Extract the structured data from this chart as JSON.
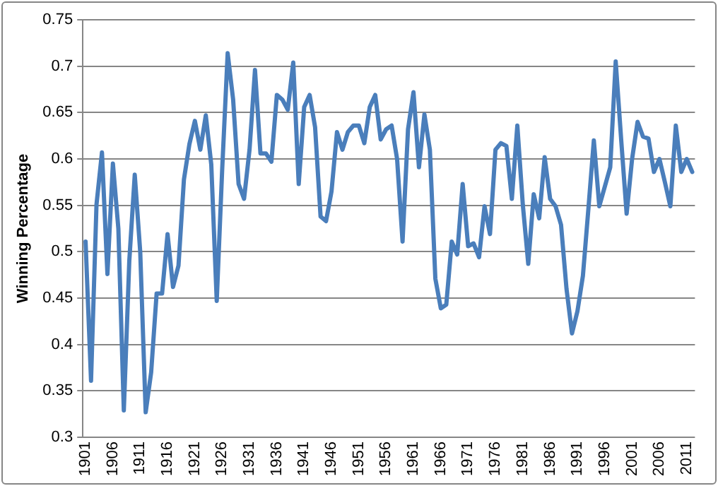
{
  "chart_data": {
    "type": "line",
    "ylabel": "Winning Percentage",
    "categories": [
      "1901",
      null,
      null,
      null,
      null,
      "1906",
      null,
      null,
      null,
      null,
      "1911",
      null,
      null,
      null,
      null,
      "1916",
      null,
      null,
      null,
      null,
      "1921",
      null,
      null,
      null,
      null,
      "1926",
      null,
      null,
      null,
      null,
      "1931",
      null,
      null,
      null,
      null,
      "1936",
      null,
      null,
      null,
      null,
      "1941",
      null,
      null,
      null,
      null,
      "1946",
      null,
      null,
      null,
      null,
      "1951",
      null,
      null,
      null,
      null,
      "1956",
      null,
      null,
      null,
      null,
      "1961",
      null,
      null,
      null,
      null,
      "1966",
      null,
      null,
      null,
      null,
      "1971",
      null,
      null,
      null,
      null,
      "1976",
      null,
      null,
      null,
      null,
      "1981",
      null,
      null,
      null,
      null,
      "1986",
      null,
      null,
      null,
      null,
      "1991",
      null,
      null,
      null,
      null,
      "1996",
      null,
      null,
      null,
      null,
      "2001",
      null,
      null,
      null,
      null,
      "2006",
      null,
      null,
      null,
      null,
      "2011",
      null
    ],
    "series": [
      {
        "color": "#4a7ebb",
        "values": [
          0.511,
          0.361,
          0.551,
          0.607,
          0.476,
          0.595,
          0.525,
          0.329,
          0.49,
          0.583,
          0.5,
          0.327,
          0.37,
          0.455,
          0.455,
          0.519,
          0.462,
          0.485,
          0.578,
          0.616,
          0.641,
          0.61,
          0.647,
          0.594,
          0.447,
          0.589,
          0.714,
          0.664,
          0.573,
          0.557,
          0.61,
          0.696,
          0.606,
          0.606,
          0.597,
          0.669,
          0.664,
          0.653,
          0.704,
          0.573,
          0.656,
          0.669,
          0.634,
          0.538,
          0.533,
          0.565,
          0.629,
          0.61,
          0.629,
          0.636,
          0.636,
          0.617,
          0.656,
          0.669,
          0.621,
          0.632,
          0.636,
          0.6,
          0.511,
          0.632,
          0.672,
          0.591,
          0.648,
          0.61,
          0.471,
          0.439,
          0.443,
          0.511,
          0.497,
          0.573,
          0.506,
          0.509,
          0.494,
          0.549,
          0.519,
          0.61,
          0.617,
          0.614,
          0.557,
          0.636,
          0.551,
          0.487,
          0.562,
          0.536,
          0.602,
          0.557,
          0.549,
          0.529,
          0.46,
          0.412,
          0.436,
          0.474,
          0.546,
          0.62,
          0.549,
          0.57,
          0.591,
          0.705,
          0.621,
          0.541,
          0.6,
          0.64,
          0.624,
          0.622,
          0.586,
          0.6,
          0.575,
          0.549,
          0.636,
          0.586,
          0.6,
          0.586
        ]
      }
    ],
    "ylim": [
      0.3,
      0.75
    ],
    "yticks": [
      0.3,
      0.35,
      0.4,
      0.45,
      0.5,
      0.55,
      0.6,
      0.65,
      0.7,
      0.75
    ],
    "grid": "y",
    "legend": false,
    "marker": "none",
    "line_style": "solid"
  }
}
